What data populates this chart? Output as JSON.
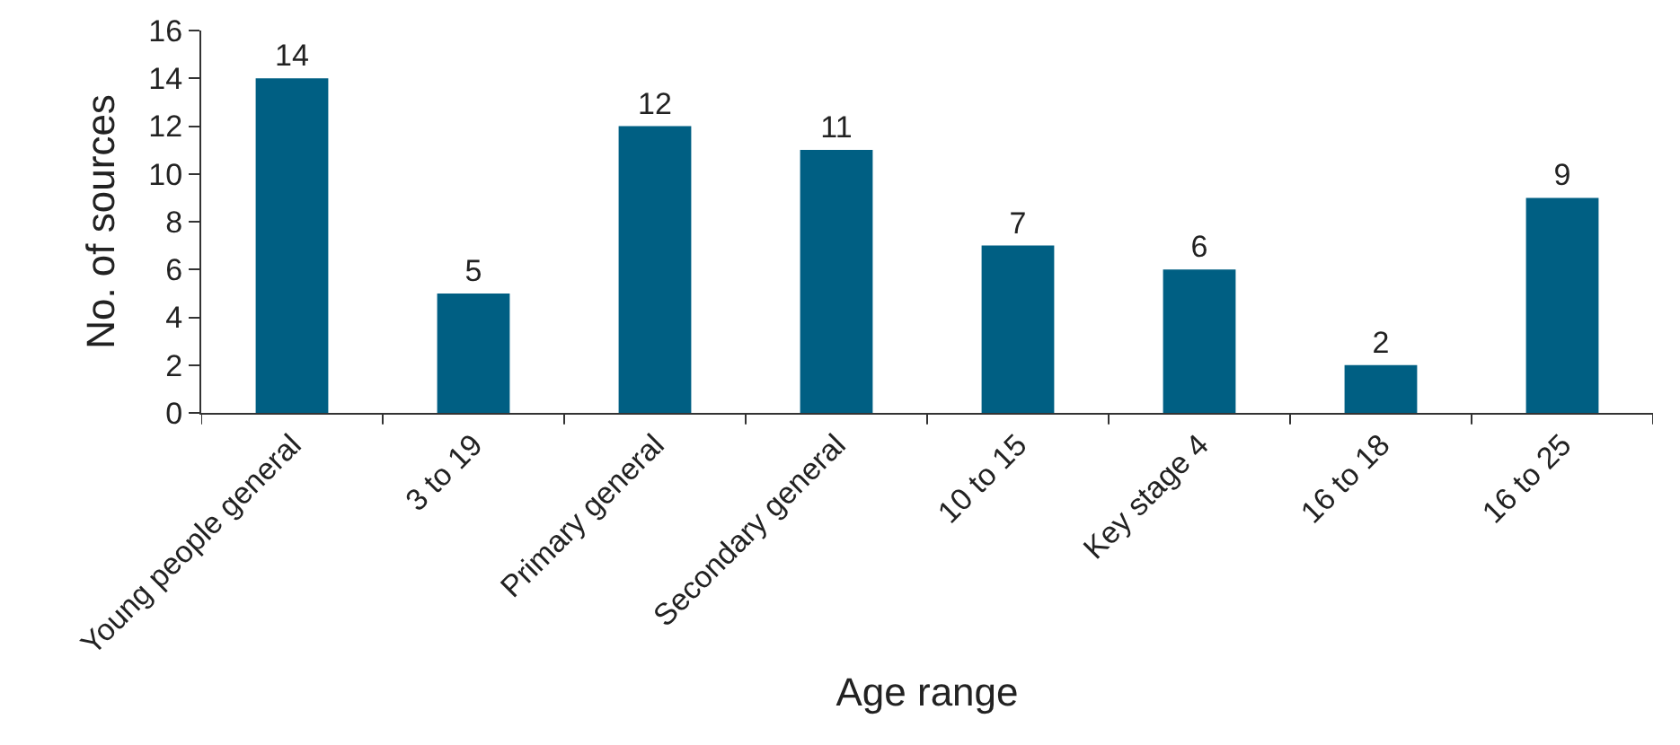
{
  "chart_data": {
    "type": "bar",
    "xlabel": "Age range",
    "ylabel": "No. of sources",
    "categories": [
      "Young people general",
      "3 to 19",
      "Primary general",
      "Secondary general",
      "10 to 15",
      "Key stage 4",
      "16 to 18",
      "16 to 25"
    ],
    "values": [
      14,
      5,
      12,
      11,
      7,
      6,
      2,
      9
    ],
    "color": "#005f83",
    "ylim": [
      0,
      16
    ],
    "yticks": [
      0,
      2,
      4,
      6,
      8,
      10,
      12,
      14,
      16
    ],
    "grid": false,
    "data_labels": true
  }
}
